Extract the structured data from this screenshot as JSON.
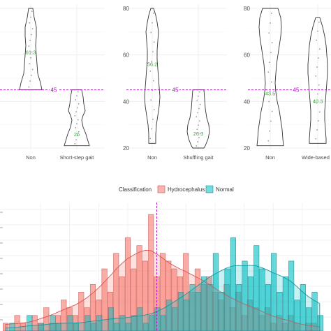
{
  "chart_data": [
    {
      "type": "violin",
      "panel": 1,
      "categories": [
        "Non",
        "Short-step gait"
      ],
      "means": [
        61.3,
        26
      ],
      "mean_labels": [
        "61.3",
        "26"
      ],
      "reference_line": 45,
      "reference_label": "45",
      "ylim": [
        20,
        80
      ]
    },
    {
      "type": "violin",
      "panel": 2,
      "categories": [
        "Non",
        "Shuffling gait"
      ],
      "means": [
        56.2,
        26.3
      ],
      "mean_labels": [
        "56.2",
        "26.3"
      ],
      "reference_line": 45,
      "reference_label": "45",
      "yticks": [
        "20",
        "40",
        "60",
        "80"
      ],
      "ylim": [
        20,
        80
      ]
    },
    {
      "type": "violin",
      "panel": 3,
      "categories": [
        "Non",
        "Wide-based g"
      ],
      "means": [
        43.5,
        40.3
      ],
      "mean_labels": [
        "43.5",
        "40.3"
      ],
      "reference_line": 45,
      "reference_label": "45",
      "yticks": [
        "20",
        "40",
        "60",
        "80"
      ],
      "ylim": [
        20,
        80
      ]
    },
    {
      "type": "bar",
      "subtype": "overlaid histogram with density curves",
      "legend_title": "Classification",
      "legend_position": "top",
      "reference_line": 45,
      "series": [
        {
          "name": "Hydrocephalus",
          "color": "#F8766D",
          "x": [
            19,
            20,
            21,
            22,
            23,
            24,
            25,
            26,
            27,
            28,
            29,
            30,
            31,
            32,
            33,
            34,
            35,
            36,
            37,
            38,
            39,
            40,
            41,
            42,
            43,
            44,
            45,
            46,
            47,
            48,
            49,
            50,
            51,
            52,
            53,
            54,
            55,
            56,
            57,
            58,
            59,
            60,
            61,
            62,
            63,
            64,
            65,
            66,
            67,
            68,
            69,
            70,
            71,
            72,
            73
          ],
          "values": [
            1,
            0,
            2,
            1,
            0,
            2,
            1,
            3,
            1,
            2,
            4,
            3,
            2,
            5,
            3,
            6,
            4,
            8,
            5,
            10,
            7,
            12,
            8,
            11,
            9,
            15,
            7,
            10,
            9,
            8,
            7,
            10,
            5,
            8,
            6,
            7,
            5,
            4,
            6,
            3,
            5,
            2,
            4,
            3,
            2,
            3,
            1,
            2,
            1,
            2,
            1,
            0,
            1,
            1,
            0
          ]
        },
        {
          "name": "Normal",
          "color": "#00BFC4",
          "x": [
            19,
            20,
            21,
            22,
            23,
            24,
            25,
            26,
            27,
            28,
            29,
            30,
            31,
            32,
            33,
            34,
            35,
            36,
            37,
            38,
            39,
            40,
            41,
            42,
            43,
            44,
            45,
            46,
            47,
            48,
            49,
            50,
            51,
            52,
            53,
            54,
            55,
            56,
            57,
            58,
            59,
            60,
            61,
            62,
            63,
            64,
            65,
            66,
            67,
            68,
            69,
            70,
            71,
            72,
            73
          ],
          "values": [
            0,
            1,
            0,
            0,
            2,
            0,
            1,
            0,
            2,
            1,
            0,
            2,
            1,
            0,
            2,
            1,
            2,
            0,
            3,
            1,
            2,
            1,
            2,
            3,
            1,
            2,
            3,
            2,
            4,
            3,
            5,
            4,
            6,
            5,
            7,
            6,
            10,
            5,
            8,
            12,
            6,
            9,
            7,
            11,
            8,
            6,
            10,
            5,
            7,
            9,
            4,
            6,
            3,
            5,
            2
          ]
        }
      ]
    }
  ]
}
